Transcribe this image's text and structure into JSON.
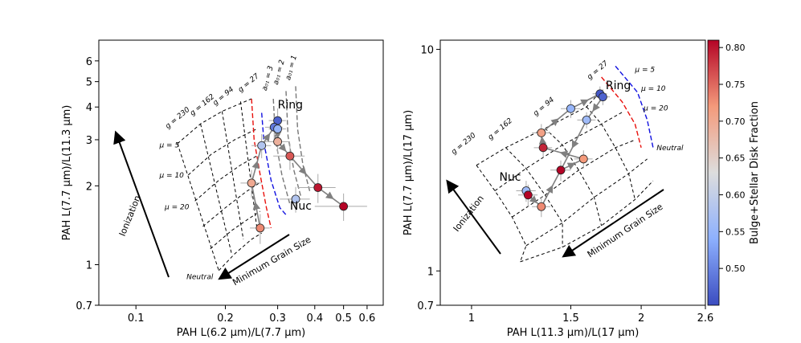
{
  "colors": {
    "grid_line": "#000000",
    "pah_red": "#e8100c",
    "pah_blue": "#1010e0",
    "grey_dash": "#777777",
    "track": "#808080",
    "error_bar": "#aaaaaa",
    "cmap_low": "#3b4cc0",
    "cmap_mid": "#dddddd",
    "cmap_high": "#b40426"
  },
  "colorbar": {
    "label": "Bulge+Stellar Disk Fraction",
    "ticks": [
      "0.50",
      "0.55",
      "0.60",
      "0.65",
      "0.70",
      "0.75",
      "0.80"
    ],
    "tick_values": [
      0.5,
      0.55,
      0.6,
      0.65,
      0.7,
      0.75,
      0.8
    ],
    "range": [
      0.45,
      0.81
    ]
  },
  "chart_data": [
    {
      "type": "scatter",
      "panel": "left",
      "xlabel": "PAH L(6.2 μm)/L(7.7 μm)",
      "ylabel": "PAH L(7.7 μm)/L(11.3 μm)",
      "xscale": "log",
      "yscale": "log",
      "xlim": [
        0.075,
        0.68
      ],
      "ylim": [
        0.7,
        7.2
      ],
      "xticks": [
        0.1,
        0.2,
        0.3,
        0.4,
        0.5,
        0.6
      ],
      "xtick_labels": [
        "0.1",
        "0.2",
        "0.3",
        "0.4",
        "0.5",
        "0.6"
      ],
      "yticks": [
        0.7,
        1,
        2,
        3,
        4,
        5,
        6
      ],
      "ytick_labels": [
        "0.7",
        "1",
        "2",
        "3",
        "4",
        "5",
        "6"
      ],
      "grid_curves": {
        "size_lines": [
          [
            [
              0.138,
              2.9
            ],
            [
              0.19,
              0.95
            ]
          ],
          [
            [
              0.165,
              3.45
            ],
            [
              0.21,
              1.1
            ]
          ],
          [
            [
              0.195,
              3.85
            ],
            [
              0.23,
              1.25
            ]
          ],
          [
            [
              0.225,
              4.2
            ],
            [
              0.255,
              1.4
            ]
          ]
        ],
        "ion_lines": [
          [
            [
              0.138,
              2.9
            ],
            [
              0.165,
              3.45
            ],
            [
              0.195,
              3.85
            ],
            [
              0.245,
              4.3
            ]
          ],
          [
            [
              0.15,
              2.2
            ],
            [
              0.18,
              2.65
            ],
            [
              0.215,
              3.0
            ],
            [
              0.255,
              3.3
            ]
          ],
          [
            [
              0.158,
              1.75
            ],
            [
              0.19,
              2.1
            ],
            [
              0.225,
              2.4
            ],
            [
              0.255,
              2.6
            ]
          ],
          [
            [
              0.168,
              1.4
            ],
            [
              0.2,
              1.65
            ],
            [
              0.235,
              1.9
            ],
            [
              0.26,
              2.05
            ]
          ],
          [
            [
              0.178,
              1.15
            ],
            [
              0.21,
              1.35
            ],
            [
              0.24,
              1.5
            ],
            [
              0.262,
              1.6
            ]
          ],
          [
            [
              0.19,
              0.95
            ],
            [
              0.215,
              1.1
            ],
            [
              0.245,
              1.25
            ],
            [
              0.265,
              1.32
            ]
          ]
        ]
      },
      "dashed_curves": [
        {
          "color": "pah_red",
          "points": [
            [
              0.245,
              4.3
            ],
            [
              0.25,
              3.0
            ],
            [
              0.262,
              2.2
            ],
            [
              0.275,
              1.65
            ],
            [
              0.285,
              1.38
            ]
          ]
        },
        {
          "color": "pah_blue",
          "points": [
            [
              0.265,
              3.8
            ],
            [
              0.27,
              2.9
            ],
            [
              0.285,
              2.1
            ],
            [
              0.305,
              1.65
            ],
            [
              0.32,
              1.55
            ]
          ]
        },
        {
          "color": "grey_dash",
          "points": [
            [
              0.29,
              4.3
            ],
            [
              0.295,
              3.0
            ],
            [
              0.31,
              2.2
            ],
            [
              0.33,
              1.7
            ]
          ]
        },
        {
          "color": "grey_dash",
          "points": [
            [
              0.32,
              4.6
            ],
            [
              0.325,
              3.1
            ],
            [
              0.34,
              2.3
            ],
            [
              0.36,
              1.8
            ]
          ]
        },
        {
          "color": "grey_dash",
          "points": [
            [
              0.345,
              4.8
            ],
            [
              0.35,
              3.3
            ],
            [
              0.365,
              2.4
            ],
            [
              0.385,
              1.9
            ]
          ]
        }
      ],
      "g_labels": [
        {
          "text": "g = 230",
          "x": 0.128,
          "y": 3.3
        },
        {
          "text": "g = 162",
          "x": 0.155,
          "y": 3.7
        },
        {
          "text": "g = 94",
          "x": 0.185,
          "y": 4.05
        },
        {
          "text": "g = 27",
          "x": 0.225,
          "y": 4.55
        }
      ],
      "mu_labels": [
        {
          "text": "μ = 5",
          "x": 0.12,
          "y": 2.8
        },
        {
          "text": "μ = 10",
          "x": 0.12,
          "y": 2.15
        },
        {
          "text": "μ = 20",
          "x": 0.125,
          "y": 1.63
        }
      ],
      "a_labels": [
        {
          "text": "a₀₁ = 3",
          "x": 0.275,
          "y": 4.6
        },
        {
          "text": "a₀₁ = 2",
          "x": 0.3,
          "y": 4.85
        },
        {
          "text": "a₀₁ = 1",
          "x": 0.33,
          "y": 5.05
        }
      ],
      "neutral_label": {
        "text": "Neutral",
        "x": 0.148,
        "y": 0.88
      },
      "ionization_label": "Ionization",
      "grain_label": "Minimum Grain Size",
      "annotations": [
        {
          "text": "Ring",
          "x": 0.3,
          "y": 3.95
        },
        {
          "text": "Nuc",
          "x": 0.33,
          "y": 1.62
        }
      ],
      "points": [
        {
          "x": 0.3,
          "y": 3.55,
          "xerr": 0.02,
          "yerr": 0.4,
          "c": 0.47
        },
        {
          "x": 0.292,
          "y": 3.35,
          "xerr": 0.02,
          "yerr": 0.35,
          "c": 0.49
        },
        {
          "x": 0.3,
          "y": 3.3,
          "xerr": 0.02,
          "yerr": 0.3,
          "c": 0.55
        },
        {
          "x": 0.265,
          "y": 2.85,
          "xerr": 0.02,
          "yerr": 0.3,
          "c": 0.58
        },
        {
          "x": 0.3,
          "y": 2.95,
          "xerr": 0.03,
          "yerr": 0.3,
          "c": 0.69
        },
        {
          "x": 0.33,
          "y": 2.6,
          "xerr": 0.04,
          "yerr": 0.3,
          "c": 0.76
        },
        {
          "x": 0.41,
          "y": 1.97,
          "xerr": 0.06,
          "yerr": 0.25,
          "c": 0.8
        },
        {
          "x": 0.5,
          "y": 1.67,
          "xerr": 0.1,
          "yerr": 0.2,
          "c": 0.81
        },
        {
          "x": 0.345,
          "y": 1.78,
          "xerr": 0.04,
          "yerr": 0.2,
          "c": 0.58
        },
        {
          "x": 0.245,
          "y": 2.05,
          "xerr": 0.02,
          "yerr": 0.25,
          "c": 0.7
        },
        {
          "x": 0.262,
          "y": 1.38,
          "xerr": 0.02,
          "yerr": 0.18,
          "c": 0.73
        }
      ],
      "track": [
        [
          0.262,
          1.38
        ],
        [
          0.245,
          2.05
        ],
        [
          0.265,
          2.85
        ],
        [
          0.292,
          3.35
        ],
        [
          0.3,
          3.3
        ],
        [
          0.3,
          2.95
        ],
        [
          0.33,
          2.6
        ],
        [
          0.41,
          1.97
        ],
        [
          0.5,
          1.67
        ]
      ]
    },
    {
      "type": "scatter",
      "panel": "right",
      "xlabel": "PAH L(11.3 μm)/L(17 μm)",
      "ylabel": "PAH L(7.7 μm)/L(17 μm)",
      "xscale": "log",
      "yscale": "log",
      "xlim": [
        0.88,
        2.6
      ],
      "ylim": [
        0.7,
        11
      ],
      "xticks": [
        1,
        1.5,
        2,
        2.6
      ],
      "xtick_labels": [
        "1",
        "1.5",
        "2",
        "2.6"
      ],
      "yticks": [
        0.7,
        1,
        10
      ],
      "ytick_labels": [
        "0.7",
        "1",
        "10"
      ],
      "grid_curves": {
        "ion_lines": [
          [
            [
              1.02,
              3.0
            ],
            [
              1.15,
              3.6
            ],
            [
              1.35,
              4.4
            ],
            [
              1.6,
              5.5
            ],
            [
              1.7,
              6.5
            ]
          ],
          [
            [
              1.1,
              2.3
            ],
            [
              1.25,
              2.9
            ],
            [
              1.45,
              3.7
            ],
            [
              1.7,
              4.6
            ],
            [
              1.85,
              5.2
            ]
          ],
          [
            [
              1.18,
              1.75
            ],
            [
              1.35,
              2.2
            ],
            [
              1.55,
              2.85
            ],
            [
              1.8,
              3.6
            ],
            [
              1.95,
              3.9
            ]
          ],
          [
            [
              1.25,
              1.3
            ],
            [
              1.45,
              1.65
            ],
            [
              1.65,
              2.15
            ],
            [
              1.9,
              2.75
            ],
            [
              2.05,
              3.2
            ]
          ],
          [
            [
              1.22,
              1.1
            ],
            [
              1.45,
              1.28
            ],
            [
              1.7,
              1.6
            ],
            [
              1.95,
              2.1
            ],
            [
              2.1,
              2.55
            ]
          ]
        ],
        "size_lines": [
          [
            [
              1.02,
              3.0
            ],
            [
              1.1,
              2.3
            ],
            [
              1.18,
              1.75
            ],
            [
              1.25,
              1.3
            ],
            [
              1.22,
              1.1
            ]
          ],
          [
            [
              1.15,
              3.6
            ],
            [
              1.25,
              2.9
            ],
            [
              1.35,
              2.2
            ],
            [
              1.45,
              1.65
            ],
            [
              1.45,
              1.28
            ]
          ],
          [
            [
              1.35,
              4.4
            ],
            [
              1.45,
              3.7
            ],
            [
              1.55,
              2.85
            ],
            [
              1.65,
              2.15
            ],
            [
              1.7,
              1.6
            ]
          ],
          [
            [
              1.6,
              5.5
            ],
            [
              1.7,
              4.6
            ],
            [
              1.8,
              3.6
            ],
            [
              1.9,
              2.75
            ],
            [
              1.95,
              2.1
            ]
          ]
        ]
      },
      "dashed_curves": [
        {
          "color": "pah_red",
          "points": [
            [
              1.7,
              7.5
            ],
            [
              1.85,
              5.8
            ],
            [
              1.95,
              4.6
            ],
            [
              2.0,
              3.6
            ]
          ]
        },
        {
          "color": "pah_blue",
          "points": [
            [
              1.8,
              8.4
            ],
            [
              1.97,
              6.4
            ],
            [
              2.05,
              4.8
            ],
            [
              2.1,
              3.6
            ]
          ]
        }
      ],
      "g_labels": [
        {
          "text": "g = 230",
          "x": 0.93,
          "y": 3.35
        },
        {
          "text": "g = 162",
          "x": 1.08,
          "y": 3.9
        },
        {
          "text": "g = 94",
          "x": 1.3,
          "y": 5.0
        },
        {
          "text": "g = 27",
          "x": 1.62,
          "y": 7.3
        }
      ],
      "mu_labels": [
        {
          "text": "μ = 5",
          "x": 1.95,
          "y": 7.9
        },
        {
          "text": "μ = 10",
          "x": 2.0,
          "y": 6.5
        },
        {
          "text": "μ = 20",
          "x": 2.02,
          "y": 5.3
        }
      ],
      "neutral_label": {
        "text": "Neutral",
        "x": 2.13,
        "y": 3.5
      },
      "ionization_label": "Ionization",
      "grain_label": "Minimum Grain Size",
      "annotations": [
        {
          "text": "Ring",
          "x": 1.73,
          "y": 6.6
        },
        {
          "text": "Nuc",
          "x": 1.12,
          "y": 2.55
        }
      ],
      "points": [
        {
          "x": 1.69,
          "y": 6.3,
          "xerr": 0.05,
          "yerr": 0.5,
          "c": 0.46
        },
        {
          "x": 1.71,
          "y": 6.1,
          "xerr": 0.05,
          "yerr": 0.5,
          "c": 0.47
        },
        {
          "x": 1.5,
          "y": 5.4,
          "xerr": 0.06,
          "yerr": 0.5,
          "c": 0.55
        },
        {
          "x": 1.6,
          "y": 4.8,
          "xerr": 0.06,
          "yerr": 0.4,
          "c": 0.56
        },
        {
          "x": 1.33,
          "y": 4.2,
          "xerr": 0.05,
          "yerr": 0.4,
          "c": 0.71
        },
        {
          "x": 1.34,
          "y": 3.6,
          "xerr": 0.05,
          "yerr": 0.35,
          "c": 0.79
        },
        {
          "x": 1.58,
          "y": 3.2,
          "xerr": 0.06,
          "yerr": 0.3,
          "c": 0.72
        },
        {
          "x": 1.44,
          "y": 2.85,
          "xerr": 0.06,
          "yerr": 0.3,
          "c": 0.81
        },
        {
          "x": 1.25,
          "y": 2.3,
          "xerr": 0.05,
          "yerr": 0.25,
          "c": 0.56
        },
        {
          "x": 1.26,
          "y": 2.2,
          "xerr": 0.05,
          "yerr": 0.25,
          "c": 0.82
        },
        {
          "x": 1.33,
          "y": 1.95,
          "xerr": 0.05,
          "yerr": 0.2,
          "c": 0.73
        }
      ],
      "track": [
        [
          1.26,
          2.2
        ],
        [
          1.33,
          1.95
        ],
        [
          1.44,
          2.85
        ],
        [
          1.58,
          3.2
        ],
        [
          1.34,
          3.6
        ],
        [
          1.33,
          4.2
        ],
        [
          1.5,
          5.4
        ],
        [
          1.69,
          6.3
        ],
        [
          1.71,
          6.1
        ],
        [
          1.6,
          4.8
        ],
        [
          1.44,
          2.85
        ]
      ]
    }
  ]
}
